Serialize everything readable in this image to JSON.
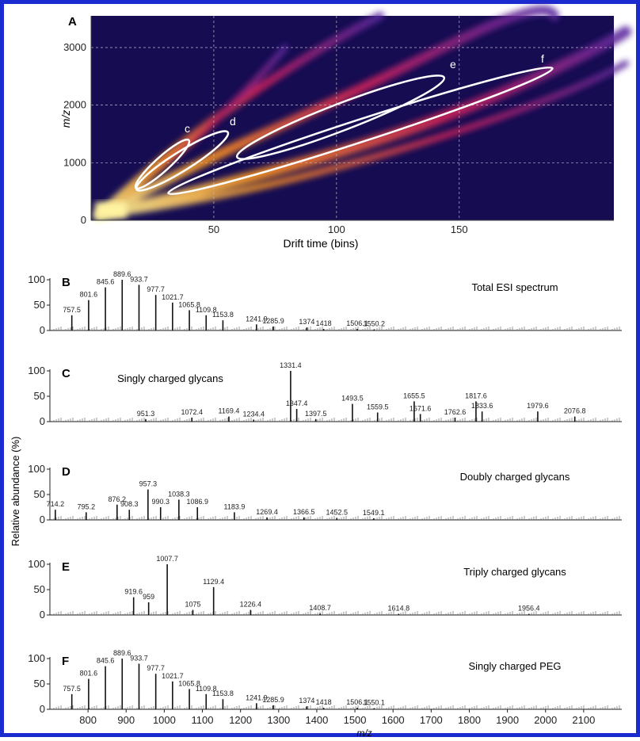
{
  "chart_data": [
    {
      "type": "heatmap",
      "panel": "A",
      "xlabel": "Drift time (bins)",
      "ylabel": "m/z",
      "xlim": [
        0,
        213
      ],
      "xticks": [
        50,
        100,
        150
      ],
      "ylim": [
        0,
        3550
      ],
      "yticks": [
        0,
        1000,
        2000,
        3000
      ],
      "annotations": [
        "c",
        "d",
        "e",
        "f"
      ]
    },
    {
      "type": "spectrum",
      "panel": "B",
      "title": "Total ESI spectrum",
      "color": "#111",
      "xlim": [
        700,
        2200
      ],
      "ylim": [
        0,
        100
      ],
      "yticks": [
        0,
        50,
        100
      ],
      "x": [
        757.5,
        801.6,
        845.6,
        889.6,
        933.7,
        977.7,
        1021.7,
        1065.8,
        1109.8,
        1153.8,
        1241.9,
        1285.9,
        1374.0,
        1418.0,
        1506.1,
        1550.2
      ],
      "values": [
        30,
        60,
        85,
        100,
        90,
        70,
        55,
        40,
        30,
        20,
        12,
        8,
        6,
        3,
        3,
        2
      ]
    },
    {
      "type": "spectrum",
      "panel": "C",
      "title": "Singly charged glycans",
      "color": "#111",
      "xlim": [
        700,
        2200
      ],
      "ylim": [
        0,
        100
      ],
      "yticks": [
        0,
        50,
        100
      ],
      "x": [
        951.3,
        1072.4,
        1169.4,
        1234.4,
        1331.4,
        1347.4,
        1397.5,
        1493.5,
        1559.5,
        1655.5,
        1671.6,
        1762.6,
        1817.6,
        1833.6,
        1979.6,
        2076.8
      ],
      "values": [
        5,
        8,
        10,
        4,
        100,
        25,
        5,
        35,
        18,
        40,
        15,
        8,
        40,
        20,
        20,
        10
      ]
    },
    {
      "type": "spectrum",
      "panel": "D",
      "title": "Doubly charged glycans",
      "ylabel": "Relative abundance (%)",
      "color": "#111",
      "xlim": [
        700,
        2200
      ],
      "ylim": [
        0,
        100
      ],
      "yticks": [
        0,
        50,
        100
      ],
      "x": [
        714.2,
        795.2,
        876.2,
        908.3,
        957.3,
        990.3,
        1038.3,
        1086.9,
        1183.9,
        1269.4,
        1366.5,
        1452.5,
        1549.1
      ],
      "values": [
        20,
        15,
        30,
        20,
        60,
        25,
        40,
        25,
        15,
        5,
        5,
        4,
        3
      ]
    },
    {
      "type": "spectrum",
      "panel": "E",
      "title": "Triply charged glycans",
      "color": "#111",
      "xlim": [
        700,
        2200
      ],
      "ylim": [
        0,
        100
      ],
      "yticks": [
        0,
        50,
        100
      ],
      "x": [
        919.6,
        959.0,
        1007.7,
        1075.0,
        1129.4,
        1226.4,
        1408.7,
        1614.8,
        1956.4
      ],
      "values": [
        35,
        25,
        100,
        10,
        55,
        10,
        3,
        2,
        2
      ]
    },
    {
      "type": "spectrum",
      "panel": "F",
      "title": "Singly charged PEG",
      "xlabel": "m/z",
      "color": "#111",
      "xlim": [
        700,
        2200
      ],
      "ylim": [
        0,
        100
      ],
      "yticks": [
        0,
        50,
        100
      ],
      "xticks": [
        800,
        900,
        1000,
        1100,
        1200,
        1300,
        1400,
        1500,
        1600,
        1700,
        1800,
        1900,
        2000,
        2100
      ],
      "x": [
        757.5,
        801.6,
        845.6,
        889.6,
        933.7,
        977.7,
        1021.7,
        1065.8,
        1109.8,
        1153.8,
        1241.9,
        1285.9,
        1374.0,
        1418.0,
        1506.1,
        1550.1
      ],
      "values": [
        30,
        60,
        85,
        100,
        90,
        70,
        55,
        40,
        30,
        20,
        12,
        8,
        6,
        3,
        3,
        2
      ]
    }
  ]
}
